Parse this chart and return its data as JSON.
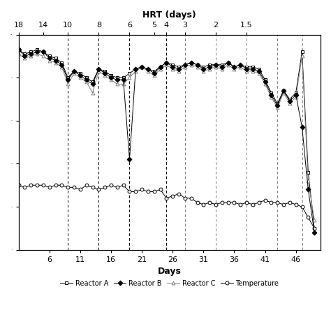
{
  "title_top": "HRT (days)",
  "xlabel": "Days",
  "vlines_dashed_dark": [
    9,
    14,
    19,
    25
  ],
  "vlines_dashed_gray": [
    28,
    33,
    38,
    43,
    47
  ],
  "bottom_xticks": [
    6,
    11,
    16,
    21,
    26,
    31,
    36,
    41,
    46
  ],
  "bottom_xlabels": [
    "6",
    "11",
    "16",
    "21",
    "26",
    "31",
    "36",
    "41",
    "46"
  ],
  "hrt_positions": [
    1,
    5,
    9,
    14,
    19,
    23,
    25,
    28,
    33,
    38
  ],
  "hrt_labels": [
    "18",
    "14",
    "10",
    "8",
    "6",
    "5",
    "4",
    "3",
    "2",
    "1.5"
  ],
  "xlim": [
    1,
    50
  ],
  "ylim": [
    0,
    100
  ],
  "reactor_A": {
    "days": [
      1,
      2,
      3,
      4,
      5,
      6,
      7,
      8,
      9,
      10,
      11,
      12,
      13,
      14,
      15,
      16,
      17,
      18,
      19,
      20,
      21,
      22,
      23,
      24,
      25,
      26,
      27,
      28,
      29,
      30,
      31,
      32,
      33,
      34,
      35,
      36,
      37,
      38,
      39,
      40,
      41,
      42,
      43,
      44,
      45,
      46,
      47,
      48,
      49
    ],
    "values": [
      93,
      91,
      92,
      93,
      92,
      90,
      89,
      87,
      80,
      83,
      82,
      80,
      78,
      84,
      83,
      81,
      80,
      80,
      82,
      84,
      85,
      84,
      83,
      85,
      87,
      86,
      85,
      86,
      87,
      86,
      85,
      86,
      86,
      86,
      87,
      85,
      86,
      85,
      85,
      84,
      79,
      73,
      68,
      74,
      70,
      73,
      92,
      36,
      10
    ]
  },
  "reactor_B": {
    "days": [
      1,
      2,
      3,
      4,
      5,
      6,
      7,
      8,
      9,
      10,
      11,
      12,
      13,
      14,
      15,
      16,
      17,
      18,
      19,
      20,
      21,
      22,
      23,
      24,
      25,
      26,
      27,
      28,
      29,
      30,
      31,
      32,
      33,
      34,
      35,
      36,
      37,
      38,
      39,
      40,
      41,
      42,
      43,
      44,
      45,
      46,
      47,
      48,
      49
    ],
    "values": [
      93,
      90,
      91,
      92,
      92,
      89,
      88,
      86,
      79,
      83,
      81,
      79,
      77,
      84,
      82,
      80,
      79,
      79,
      42,
      84,
      85,
      84,
      82,
      85,
      87,
      85,
      84,
      86,
      87,
      86,
      84,
      85,
      86,
      85,
      87,
      85,
      86,
      84,
      84,
      83,
      78,
      72,
      67,
      74,
      69,
      72,
      57,
      28,
      8
    ]
  },
  "reactor_C": {
    "days": [
      1,
      2,
      3,
      4,
      5,
      6,
      7,
      8,
      9,
      10,
      11,
      12,
      13,
      14,
      15,
      16,
      17,
      18,
      19,
      20,
      21,
      22,
      23,
      24,
      25,
      26,
      27,
      28,
      29,
      30,
      31,
      32,
      33,
      34,
      35,
      36,
      37,
      38,
      39,
      40,
      41,
      42,
      43,
      44,
      45,
      46,
      47,
      48,
      49
    ],
    "values": [
      91,
      89,
      90,
      91,
      90,
      88,
      87,
      85,
      77,
      82,
      80,
      78,
      73,
      83,
      81,
      79,
      77,
      77,
      80,
      83,
      85,
      83,
      81,
      84,
      86,
      84,
      83,
      85,
      86,
      85,
      83,
      84,
      85,
      84,
      86,
      84,
      85,
      83,
      83,
      82,
      77,
      71,
      66,
      73,
      68,
      71,
      90,
      32,
      14
    ]
  },
  "temperature": {
    "days": [
      1,
      2,
      3,
      4,
      5,
      6,
      7,
      8,
      9,
      10,
      11,
      12,
      13,
      14,
      15,
      16,
      17,
      18,
      19,
      20,
      21,
      22,
      23,
      24,
      25,
      26,
      27,
      28,
      29,
      30,
      31,
      32,
      33,
      34,
      35,
      36,
      37,
      38,
      39,
      40,
      41,
      42,
      43,
      44,
      45,
      46,
      47,
      48,
      49
    ],
    "values": [
      30,
      29,
      30,
      30,
      30,
      29,
      30,
      30,
      29,
      29,
      28,
      30,
      29,
      28,
      29,
      30,
      29,
      30,
      27,
      27,
      28,
      27,
      27,
      28,
      24,
      25,
      26,
      24,
      24,
      22,
      21,
      22,
      21,
      22,
      22,
      22,
      21,
      22,
      21,
      22,
      23,
      22,
      22,
      21,
      22,
      21,
      20,
      15,
      10
    ]
  },
  "bg_color": "#ffffff"
}
